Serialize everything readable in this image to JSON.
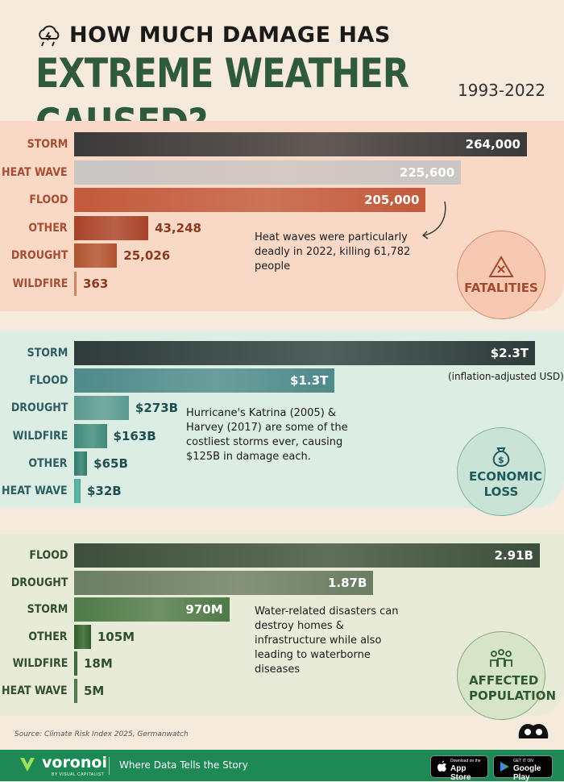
{
  "header": {
    "title_line1": "HOW MUCH DAMAGE HAS",
    "title_line2": "EXTREME WEATHER CAUSED?",
    "years": "1993-2022"
  },
  "chart_data": [
    {
      "type": "bar",
      "orientation": "horizontal",
      "label": "FATALITIES",
      "categories": [
        "STORM",
        "HEAT WAVE",
        "FLOOD",
        "OTHER",
        "DROUGHT",
        "WILDFIRE"
      ],
      "values": [
        264000,
        225600,
        205000,
        43248,
        25026,
        363
      ],
      "value_labels": [
        "264,000",
        "225,600",
        "205,000",
        "43,248",
        "25,026",
        "363"
      ],
      "annotation": "Heat waves were particularly deadly in 2022, killing 61,782 people",
      "colors": [
        "#3b3a3a",
        "#c9c6c4",
        "#c25a3c",
        "#a8432a",
        "#b0532f",
        "#c97a5b"
      ]
    },
    {
      "type": "bar",
      "orientation": "horizontal",
      "label": "ECONOMIC LOSS",
      "categories": [
        "STORM",
        "FLOOD",
        "DROUGHT",
        "WILDFIRE",
        "OTHER",
        "HEAT WAVE"
      ],
      "values": [
        2300,
        1300,
        273,
        163,
        65,
        32
      ],
      "unit": "billion USD",
      "value_labels": [
        "$2.3T",
        "$1.3T",
        "$273B",
        "$163B",
        "$65B",
        "$32B"
      ],
      "note": "(inflation-adjusted USD)",
      "annotation": "Hurricane's Katrina (2005) & Harvey (2017) are some of the costliest storms ever, causing $125B in damage each.",
      "colors": [
        "#2e3b3a",
        "#4f8a8a",
        "#5b9a8e",
        "#3f8a7a",
        "#2f7a6a",
        "#4aa896"
      ]
    },
    {
      "type": "bar",
      "orientation": "horizontal",
      "label": "AFFECTED POPULATION",
      "categories": [
        "FLOOD",
        "DROUGHT",
        "STORM",
        "OTHER",
        "WILDFIRE",
        "HEAT WAVE"
      ],
      "values": [
        2910,
        1870,
        970,
        105,
        18,
        5
      ],
      "unit": "million people",
      "value_labels": [
        "2.91B",
        "1.87B",
        "970M",
        "105M",
        "18M",
        "5M"
      ],
      "annotation": "Water-related disasters can destroy homes & infrastructure while also leading to waterborne diseases",
      "colors": [
        "#3d4f3c",
        "#6b7d62",
        "#4f7a48",
        "#2f5f2a",
        "#2a5a2a",
        "#3f6a3a"
      ]
    }
  ],
  "source": "Source: Climate Risk Index 2025, Germanwatch",
  "footer": {
    "brand": "voronoi",
    "brand_sub": "BY VISUAL CAPITALIST",
    "tagline": "Where Data Tells the Story",
    "app_store_small": "Download on the",
    "app_store_big": "App Store",
    "google_small": "GET IT ON",
    "google_big": "Google Play"
  }
}
